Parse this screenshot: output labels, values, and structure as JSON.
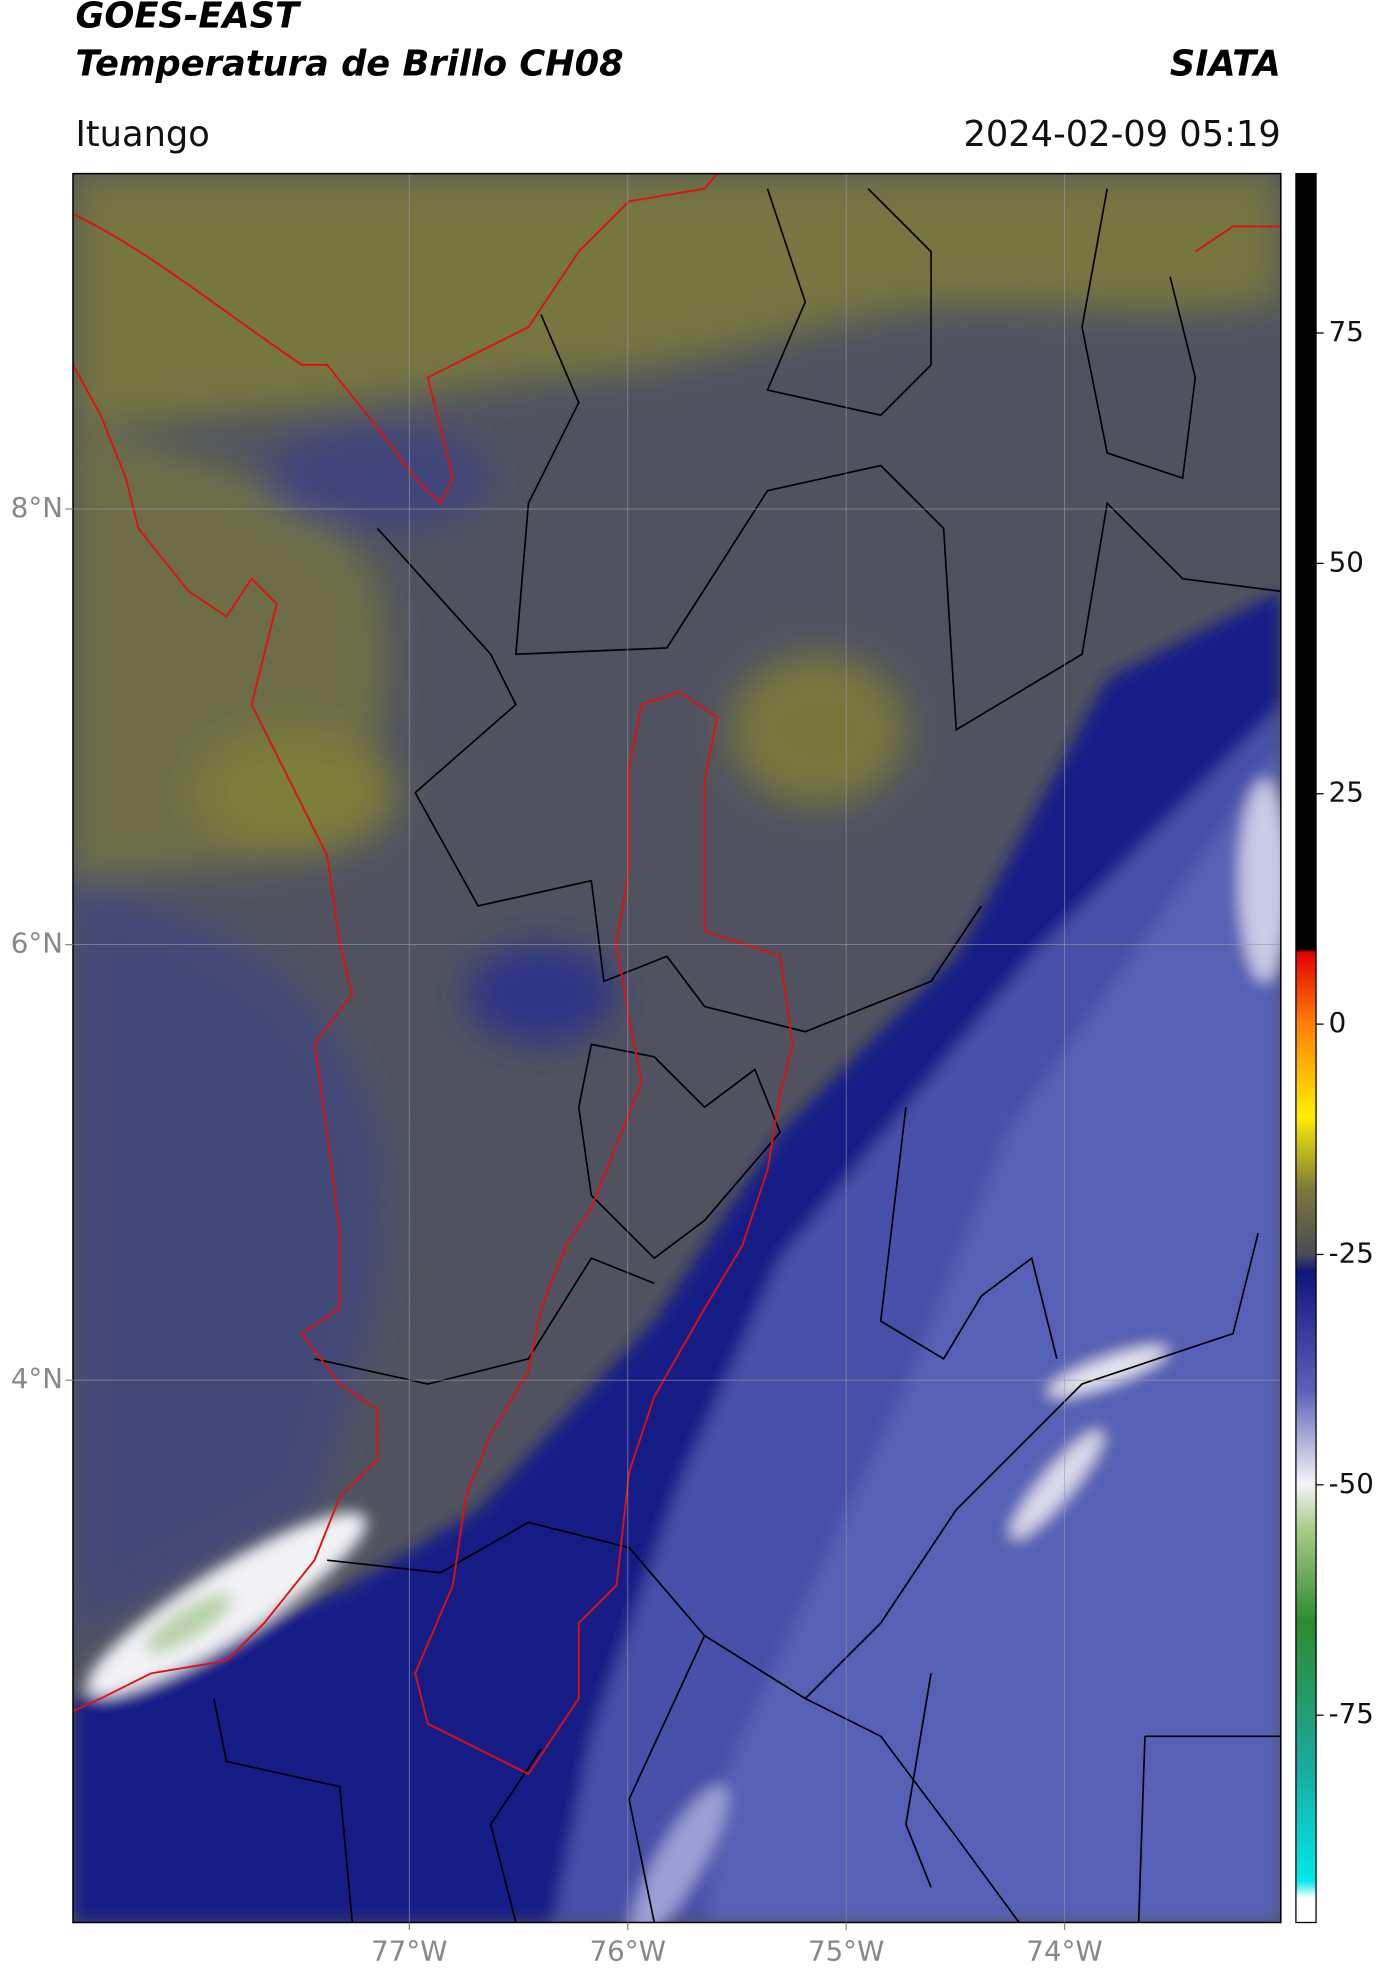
{
  "header": {
    "title": "GOES-EAST",
    "subtitle": "Temperatura de Brillo CH08",
    "organization": "SIATA",
    "location": "Ituango",
    "timestamp": "2024-02-09 05:19"
  },
  "map": {
    "xlim": [
      -78.54,
      -73.01
    ],
    "ylim": [
      1.51,
      9.54
    ],
    "xticks": [
      {
        "value": -77,
        "label": "77°W"
      },
      {
        "value": -76,
        "label": "76°W"
      },
      {
        "value": -75,
        "label": "75°W"
      },
      {
        "value": -74,
        "label": "74°W"
      }
    ],
    "yticks": [
      {
        "value": 8,
        "label": "8°N"
      },
      {
        "value": 6,
        "label": "6°N"
      },
      {
        "value": 4,
        "label": "4°N"
      }
    ],
    "grid": true
  },
  "colorbar": {
    "lim": [
      -97.5,
      92.3
    ],
    "ticks": [
      75,
      50,
      25,
      0,
      -25,
      -50,
      -75
    ]
  }
}
